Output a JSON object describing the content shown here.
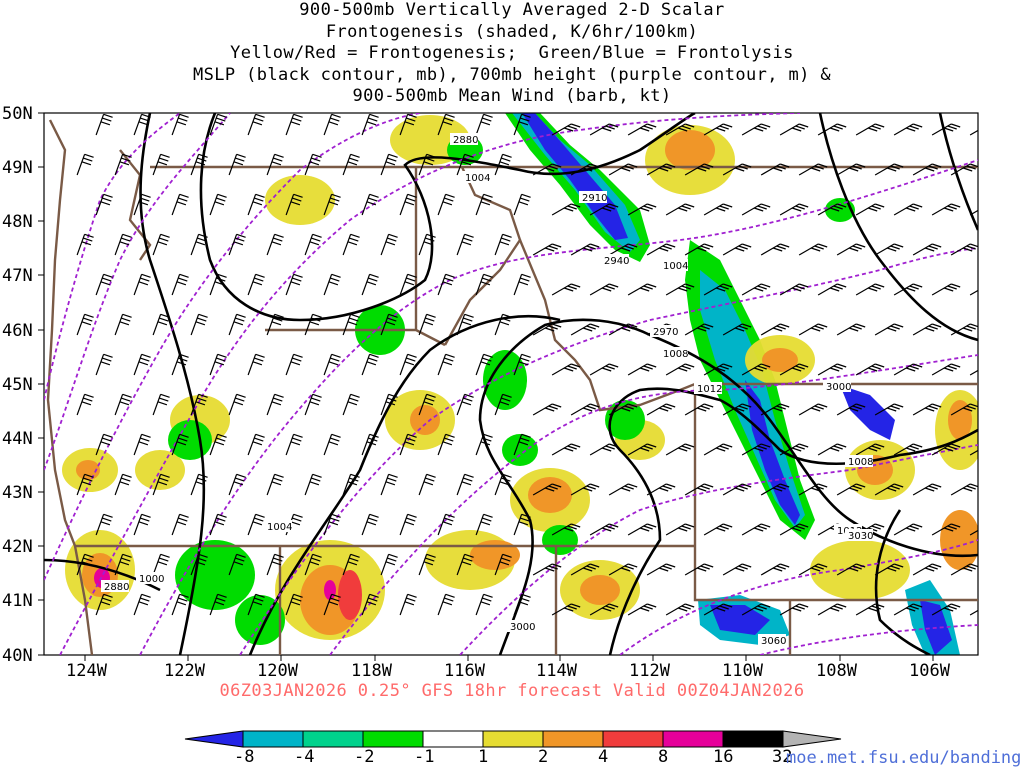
{
  "title_lines": [
    "900-500mb Vertically Averaged 2-D Scalar",
    "Frontogenesis (shaded, K/6hr/100km)",
    "Yellow/Red = Frontogenesis;  Green/Blue = Frontolysis",
    "MSLP (black contour, mb), 700mb height (purple contour, m) &",
    "900-500mb Mean Wind (barb, kt)"
  ],
  "lat_labels": [
    "50N",
    "49N",
    "48N",
    "47N",
    "46N",
    "45N",
    "44N",
    "43N",
    "42N",
    "41N",
    "40N"
  ],
  "lon_labels": [
    "124W",
    "122W",
    "120W",
    "118W",
    "116W",
    "114W",
    "112W",
    "110W",
    "108W",
    "106W"
  ],
  "isobar_labels": [
    "1004",
    "1004",
    "1008",
    "1012",
    "1008",
    "1012",
    "1004",
    "1000"
  ],
  "height_labels": [
    "2880",
    "2910",
    "2940",
    "2970",
    "3000",
    "3000",
    "3030",
    "3060",
    "2880"
  ],
  "footer": "06Z03JAN2026 0.25° GFS 18hr forecast Valid 00Z04JAN2026",
  "credit": "moe.met.fsu.edu/banding",
  "colorbar": {
    "labels": [
      "-8",
      "-4",
      "-2",
      "-1",
      "1",
      "2",
      "4",
      "8",
      "16",
      "32"
    ],
    "colors": [
      "#2424e6",
      "#00b4c8",
      "#00d28c",
      "#00dc00",
      "#ffffff",
      "#e6dc32",
      "#f09628",
      "#f03c3c",
      "#e6009a",
      "#000000",
      "#b4b4b4"
    ]
  },
  "colors": {
    "isobar": "#000000",
    "height": "#a020d0",
    "border": "#7a5a46",
    "footer": "#ff6a6a",
    "credit": "#4f6fd8"
  }
}
